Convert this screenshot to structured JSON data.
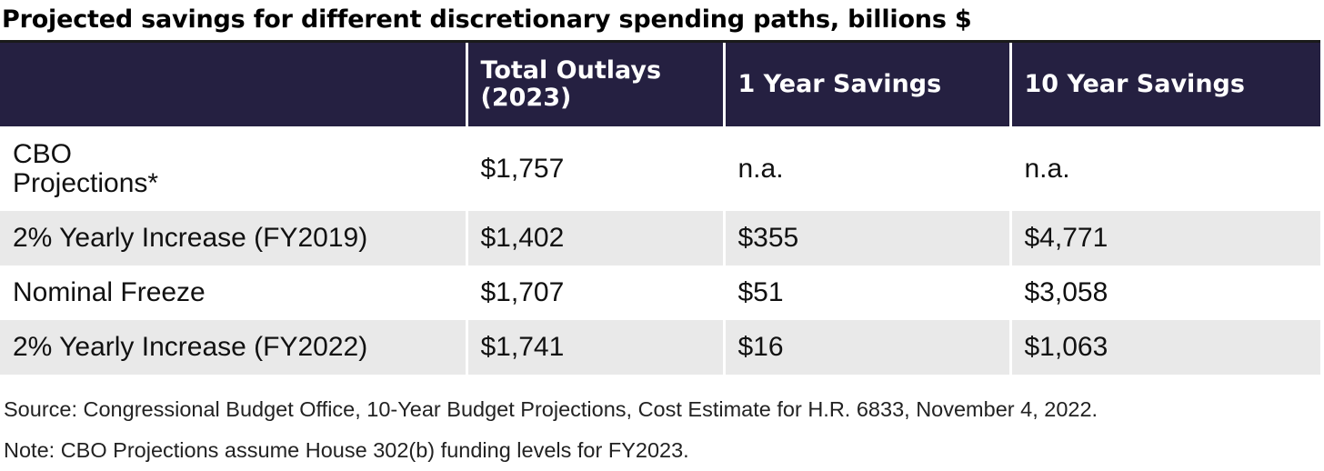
{
  "chart_data": {
    "type": "table",
    "title": "Projected savings for different discretionary spending paths, billions $",
    "columns": [
      "",
      "Total Outlays (2023)",
      "1 Year Savings",
      "10 Year Savings"
    ],
    "rows": [
      {
        "label": "CBO Projections*",
        "label_line1": "CBO",
        "label_line2": "Projections*",
        "total_outlays_2023": "$1,757",
        "one_year_savings": "n.a.",
        "ten_year_savings": "n.a."
      },
      {
        "label": "2% Yearly Increase (FY2019)",
        "total_outlays_2023": "$1,402",
        "one_year_savings": "$355",
        "ten_year_savings": "$4,771"
      },
      {
        "label": "Nominal Freeze",
        "total_outlays_2023": "$1,707",
        "one_year_savings": "$51",
        "ten_year_savings": "$3,058"
      },
      {
        "label": "2% Yearly Increase (FY2022)",
        "total_outlays_2023": "$1,741",
        "one_year_savings": "$16",
        "ten_year_savings": "$1,063"
      }
    ],
    "header_color": "#252041",
    "stripe_color": "#e9e9e9"
  },
  "header": {
    "col1_line1": "Total Outlays",
    "col1_line2": "(2023)",
    "col2": "1 Year Savings",
    "col3": "10 Year Savings"
  },
  "footnotes": {
    "source": "Source: Congressional Budget Office, 10-Year Budget Projections, Cost Estimate for H.R. 6833, November 4, 2022.",
    "note": "Note: CBO Projections assume House 302(b) funding levels for FY2023."
  }
}
